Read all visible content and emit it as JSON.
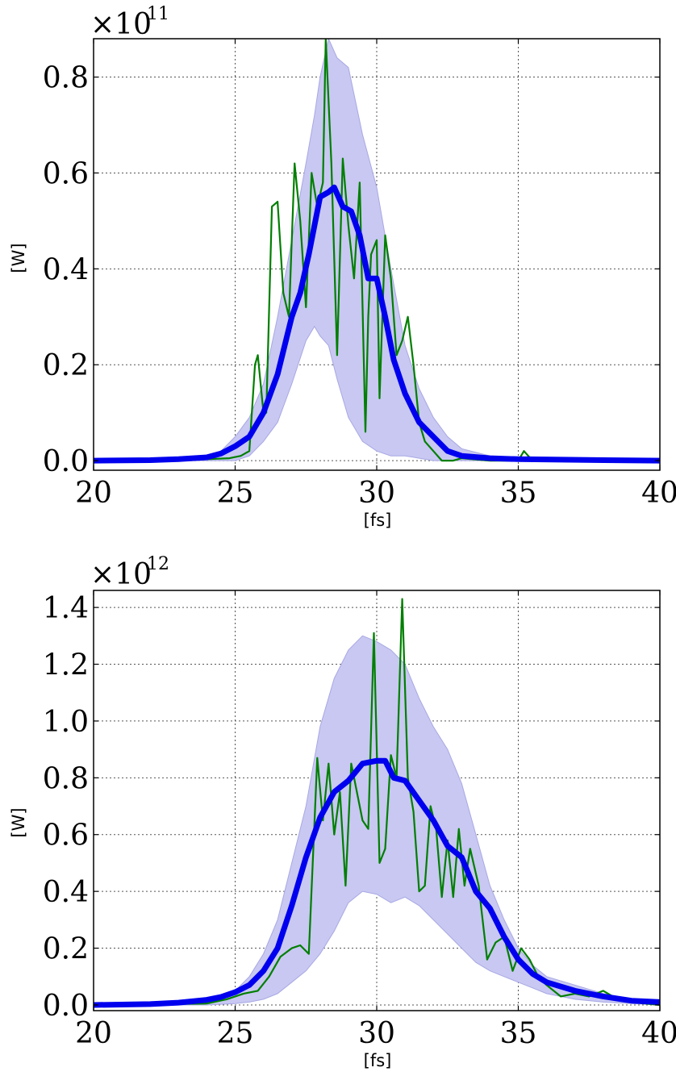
{
  "chart_data": [
    {
      "type": "line",
      "xlabel": "[fs]",
      "ylabel": "[W]",
      "multiplier": "×10",
      "exponent": "11",
      "xlim": [
        20,
        40
      ],
      "ylim": [
        -0.02,
        0.88
      ],
      "xticks": [
        20,
        25,
        30,
        35,
        40
      ],
      "yticks": [
        0.0,
        0.2,
        0.4,
        0.6,
        0.8
      ],
      "ytick_labels": [
        "0.0",
        "0.2",
        "0.4",
        "0.6",
        "0.8"
      ],
      "grid": true,
      "colors": {
        "band": "#c8c8f2",
        "mean": "#0000ee",
        "sample": "#007f00"
      },
      "series": [
        {
          "role": "envelope",
          "x": [
            20,
            22,
            23,
            24,
            24.5,
            25,
            25.5,
            26,
            26.5,
            27,
            27.5,
            27.8,
            28,
            28.3,
            28.6,
            29,
            29.5,
            30,
            30.5,
            31,
            31.5,
            32,
            32.5,
            33,
            34,
            35,
            40
          ],
          "lower": [
            0,
            0,
            0,
            0,
            0,
            0,
            0.01,
            0.04,
            0.08,
            0.16,
            0.25,
            0.28,
            0.26,
            0.24,
            0.17,
            0.09,
            0.04,
            0.02,
            0.01,
            0.01,
            0.005,
            0,
            0,
            0,
            0,
            0,
            0
          ],
          "upper": [
            0,
            0.002,
            0.005,
            0.01,
            0.02,
            0.05,
            0.09,
            0.16,
            0.3,
            0.46,
            0.62,
            0.72,
            0.8,
            0.88,
            0.84,
            0.82,
            0.68,
            0.57,
            0.4,
            0.24,
            0.15,
            0.09,
            0.05,
            0.025,
            0.01,
            0.005,
            0
          ]
        },
        {
          "role": "mean",
          "x": [
            20,
            22,
            23,
            24,
            24.5,
            25,
            25.5,
            26,
            26.5,
            27,
            27.3,
            27.6,
            28,
            28.3,
            28.5,
            28.8,
            29.1,
            29.4,
            29.7,
            30,
            30.3,
            30.6,
            31,
            31.5,
            32,
            32.5,
            33,
            34,
            35,
            38,
            40
          ],
          "values": [
            0,
            0.001,
            0.003,
            0.007,
            0.015,
            0.03,
            0.05,
            0.1,
            0.18,
            0.3,
            0.35,
            0.43,
            0.55,
            0.56,
            0.57,
            0.53,
            0.52,
            0.47,
            0.38,
            0.38,
            0.3,
            0.21,
            0.14,
            0.08,
            0.05,
            0.02,
            0.01,
            0.005,
            0.003,
            0.001,
            0
          ]
        },
        {
          "role": "sample",
          "x": [
            20,
            24,
            24.8,
            25.2,
            25.5,
            25.7,
            25.8,
            26,
            26.1,
            26.3,
            26.5,
            26.7,
            26.9,
            27.1,
            27.3,
            27.5,
            27.7,
            27.9,
            28.1,
            28.2,
            28.4,
            28.6,
            28.8,
            29,
            29.2,
            29.4,
            29.6,
            29.7,
            29.8,
            30,
            30.1,
            30.3,
            30.5,
            30.7,
            30.9,
            31.1,
            31.3,
            31.5,
            31.7,
            32,
            32.3,
            32.7,
            33,
            34,
            35,
            35.2,
            35.5,
            36,
            37,
            37.3,
            37.6,
            38,
            40
          ],
          "values": [
            0,
            0.003,
            0.005,
            0.01,
            0.02,
            0.2,
            0.22,
            0.1,
            0.1,
            0.53,
            0.54,
            0.35,
            0.3,
            0.62,
            0.5,
            0.32,
            0.6,
            0.53,
            0.58,
            0.88,
            0.62,
            0.22,
            0.63,
            0.49,
            0.38,
            0.58,
            0.06,
            0.3,
            0.43,
            0.46,
            0.13,
            0.47,
            0.38,
            0.22,
            0.25,
            0.3,
            0.2,
            0.08,
            0.04,
            0.02,
            0.0,
            0.0,
            0.005,
            0.0,
            0.0,
            0.02,
            0.0,
            0.0,
            0.0,
            0.005,
            0.0,
            0.0,
            0.0
          ]
        }
      ]
    },
    {
      "type": "line",
      "xlabel": "[fs]",
      "ylabel": "[W]",
      "multiplier": "×10",
      "exponent": "12",
      "xlim": [
        20,
        40
      ],
      "ylim": [
        -0.02,
        1.46
      ],
      "xticks": [
        20,
        25,
        30,
        35,
        40
      ],
      "yticks": [
        0.0,
        0.2,
        0.4,
        0.6,
        0.8,
        1.0,
        1.2,
        1.4
      ],
      "ytick_labels": [
        "0.0",
        "0.2",
        "0.4",
        "0.6",
        "0.8",
        "1.0",
        "1.2",
        "1.4"
      ],
      "grid": true,
      "colors": {
        "band": "#c8c8f2",
        "mean": "#0000ee",
        "sample": "#007f00"
      },
      "series": [
        {
          "role": "envelope",
          "x": [
            20,
            22,
            24,
            25,
            25.5,
            26,
            26.5,
            27,
            27.5,
            28,
            28.5,
            29,
            29.5,
            30,
            30.5,
            31,
            31.5,
            32,
            32.5,
            33,
            33.5,
            34,
            34.5,
            35,
            35.5,
            36,
            37,
            38,
            39,
            40
          ],
          "lower": [
            0,
            0,
            0,
            0.005,
            0.01,
            0.02,
            0.04,
            0.08,
            0.12,
            0.18,
            0.26,
            0.36,
            0.4,
            0.39,
            0.36,
            0.38,
            0.35,
            0.3,
            0.25,
            0.2,
            0.15,
            0.12,
            0.1,
            0.08,
            0.06,
            0.04,
            0.02,
            0.01,
            0.005,
            0
          ],
          "upper": [
            0,
            0.005,
            0.02,
            0.05,
            0.1,
            0.18,
            0.3,
            0.5,
            0.7,
            0.98,
            1.15,
            1.25,
            1.3,
            1.28,
            1.25,
            1.2,
            1.08,
            0.98,
            0.9,
            0.78,
            0.6,
            0.42,
            0.3,
            0.2,
            0.14,
            0.1,
            0.07,
            0.04,
            0.02,
            0.0
          ]
        },
        {
          "role": "mean",
          "x": [
            20,
            22,
            23,
            24,
            24.5,
            25,
            25.5,
            26,
            26.5,
            27,
            27.5,
            28,
            28.5,
            29,
            29.5,
            30,
            30.3,
            30.6,
            31,
            31.5,
            32,
            32.5,
            33,
            33.5,
            34,
            34.5,
            35,
            35.5,
            36,
            37,
            38,
            39,
            40
          ],
          "values": [
            0,
            0.003,
            0.008,
            0.018,
            0.028,
            0.045,
            0.07,
            0.12,
            0.2,
            0.35,
            0.52,
            0.66,
            0.75,
            0.79,
            0.85,
            0.86,
            0.86,
            0.8,
            0.79,
            0.72,
            0.65,
            0.56,
            0.52,
            0.4,
            0.34,
            0.24,
            0.16,
            0.11,
            0.08,
            0.05,
            0.03,
            0.015,
            0.01
          ]
        },
        {
          "role": "sample",
          "x": [
            20,
            24,
            24.7,
            25.3,
            25.8,
            26.2,
            26.6,
            27,
            27.3,
            27.6,
            27.9,
            28.1,
            28.3,
            28.5,
            28.7,
            28.9,
            29.1,
            29.3,
            29.5,
            29.7,
            29.9,
            30.1,
            30.3,
            30.5,
            30.7,
            30.9,
            31.1,
            31.3,
            31.5,
            31.7,
            31.9,
            32.1,
            32.3,
            32.5,
            32.7,
            32.9,
            33.1,
            33.3,
            33.6,
            33.9,
            34.2,
            34.5,
            34.8,
            35.1,
            35.4,
            35.7,
            36,
            36.5,
            37,
            37.5,
            38,
            38.5,
            39,
            40
          ],
          "values": [
            0,
            0.005,
            0.02,
            0.04,
            0.05,
            0.1,
            0.17,
            0.2,
            0.21,
            0.18,
            0.87,
            0.65,
            0.85,
            0.6,
            0.75,
            0.42,
            0.85,
            0.75,
            0.65,
            0.62,
            1.31,
            0.5,
            0.55,
            0.88,
            0.8,
            1.43,
            0.8,
            0.68,
            0.4,
            0.42,
            0.7,
            0.62,
            0.38,
            0.58,
            0.38,
            0.62,
            0.42,
            0.55,
            0.42,
            0.16,
            0.22,
            0.24,
            0.12,
            0.2,
            0.16,
            0.1,
            0.07,
            0.03,
            0.04,
            0.03,
            0.05,
            0.02,
            0.01,
            0.0
          ]
        }
      ]
    }
  ]
}
